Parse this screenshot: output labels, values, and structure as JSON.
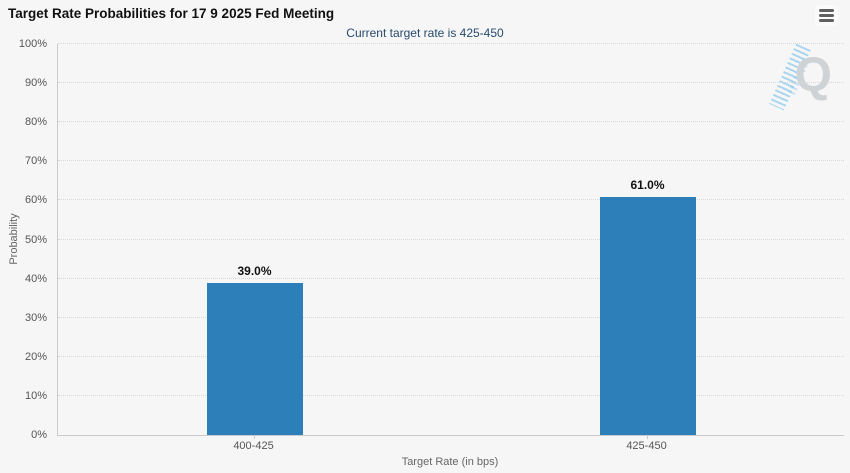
{
  "header": {
    "title": "Target Rate Probabilities for 17 9 2025 Fed Meeting",
    "subtitle": "Current target rate is 425-450",
    "menu_icon": "hamburger-icon",
    "watermark_icon": "q-logo-watermark"
  },
  "chart_data": {
    "type": "bar",
    "title": "Target Rate Probabilities for 17 9 2025 Fed Meeting",
    "subtitle": "Current target rate is 425-450",
    "categories": [
      "400-425",
      "425-450"
    ],
    "values": [
      39.0,
      61.0
    ],
    "value_labels": [
      "39.0%",
      "61.0%"
    ],
    "xlabel": "Target Rate (in bps)",
    "ylabel": "Probability",
    "ylim": [
      0,
      100
    ],
    "ytick_step": 10,
    "ytick_suffix": "%",
    "grid": "horizontal dotted",
    "legend": "none",
    "bar_color": "#2c7fb8",
    "watermark_letter": "Q"
  },
  "colors": {
    "background": "#f6f6f7",
    "bar": "#2c7fb8",
    "subtitle_text": "#274b6d",
    "axis_line": "#c9cacc",
    "grid_line": "#d6d7d9",
    "axis_label": "#555555",
    "axis_title": "#666666",
    "watermark_gray": "#cfd3d6",
    "watermark_blue": "#82c3e9"
  }
}
